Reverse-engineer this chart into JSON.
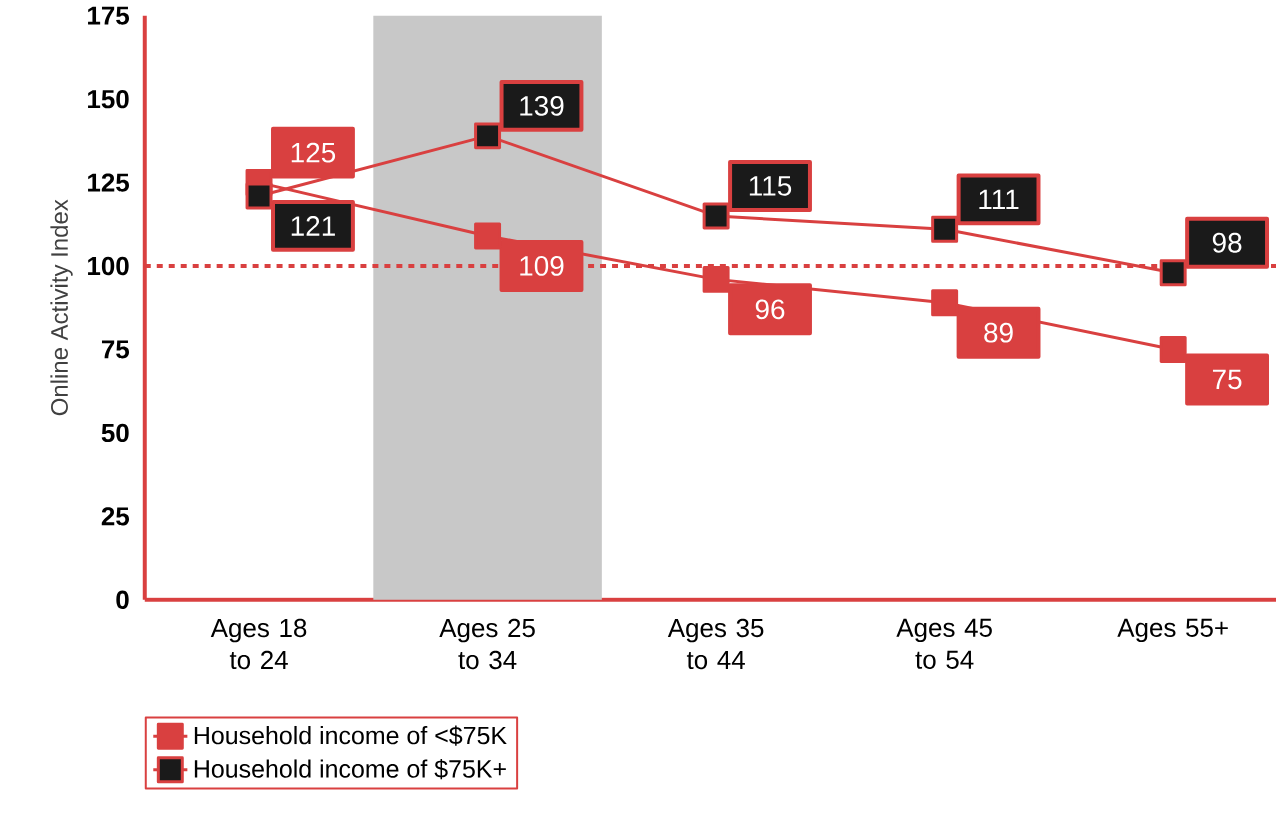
{
  "chart_data": {
    "type": "line",
    "ylabel": "Online Activity Index",
    "categories": [
      "Ages 18 to 24",
      "Ages 25 to 34",
      "Ages 35 to 44",
      "Ages 45 to 54",
      "Ages 55+"
    ],
    "series": [
      {
        "name": "Household income of <$75K",
        "color": "#d94040",
        "values": [
          125,
          109,
          96,
          89,
          75
        ]
      },
      {
        "name": "Household income of $75K+",
        "color": "#1a1a1a",
        "values": [
          121,
          139,
          115,
          111,
          98
        ]
      }
    ],
    "ylim": [
      0,
      175
    ],
    "yticks": [
      0,
      25,
      50,
      75,
      100,
      125,
      150,
      175
    ],
    "ref_lines": [
      {
        "axis": "y",
        "value": 100,
        "color": "#d94040",
        "line_style": "dashed"
      }
    ],
    "bands": [
      {
        "axis": "x",
        "from": "Ages 25 to 34",
        "to": "Ages 25 to 34",
        "color": "#c8c8c8"
      }
    ],
    "data_labels": true,
    "marker": "square",
    "line_style": "solid",
    "legend": "bottom left",
    "grid": false
  }
}
